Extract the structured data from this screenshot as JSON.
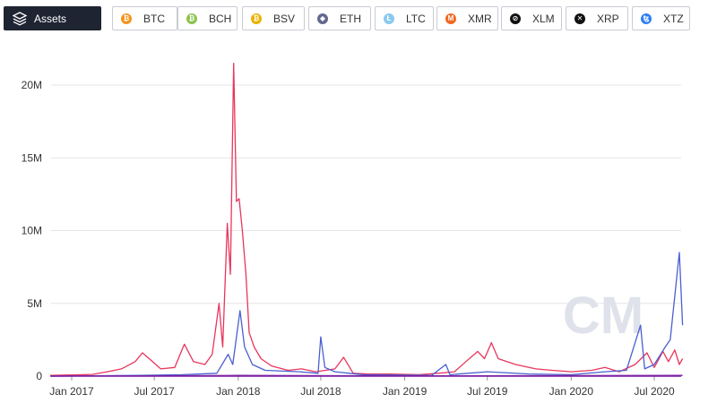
{
  "toolbar": {
    "assets_label": "Assets",
    "assets": [
      {
        "label": "BTC",
        "color": "#f7931a",
        "glyph": "₿",
        "icon": "bitcoin-icon"
      },
      {
        "label": "BCH",
        "color": "#8dc351",
        "glyph": "₿",
        "icon": "bitcoin-cash-icon"
      },
      {
        "label": "BSV",
        "color": "#eab300",
        "glyph": "₿",
        "icon": "bitcoin-sv-icon"
      },
      {
        "label": "ETH",
        "color": "#62688f",
        "glyph": "◆",
        "icon": "ethereum-icon"
      },
      {
        "label": "LTC",
        "color": "#88c9ee",
        "glyph": "Ł",
        "icon": "litecoin-icon"
      },
      {
        "label": "XMR",
        "color": "#f26822",
        "glyph": "M",
        "icon": "monero-icon"
      },
      {
        "label": "XLM",
        "color": "#111111",
        "glyph": "⊘",
        "icon": "stellar-icon"
      },
      {
        "label": "XRP",
        "color": "#111111",
        "glyph": "✕",
        "icon": "ripple-icon"
      },
      {
        "label": "XTZ",
        "color": "#2c7df7",
        "glyph": "ꜩ",
        "icon": "tezos-icon"
      }
    ]
  },
  "watermark": "CM",
  "chart_data": {
    "type": "line",
    "x_ticks": [
      "Jan 2017",
      "Jul 2017",
      "Jan 2018",
      "Jul 2018",
      "Jan 2019",
      "Jul 2019",
      "Jan 2020",
      "Jul 2020"
    ],
    "y_ticks": [
      "0",
      "5M",
      "10M",
      "15M",
      "20M"
    ],
    "ylim": [
      0,
      22000000
    ],
    "grid": true,
    "series": [
      {
        "color": "#e8365d",
        "points": [
          [
            "2016-11-15",
            0.05
          ],
          [
            "2017-01-01",
            0.08
          ],
          [
            "2017-02-15",
            0.12
          ],
          [
            "2017-03-20",
            0.3
          ],
          [
            "2017-04-20",
            0.5
          ],
          [
            "2017-05-20",
            1.0
          ],
          [
            "2017-06-05",
            1.6
          ],
          [
            "2017-06-20",
            1.2
          ],
          [
            "2017-07-15",
            0.5
          ],
          [
            "2017-08-15",
            0.6
          ],
          [
            "2017-09-05",
            2.2
          ],
          [
            "2017-09-25",
            1.0
          ],
          [
            "2017-10-20",
            0.8
          ],
          [
            "2017-11-05",
            1.5
          ],
          [
            "2017-11-20",
            5.0
          ],
          [
            "2017-11-28",
            2.0
          ],
          [
            "2017-12-08",
            10.5
          ],
          [
            "2017-12-15",
            7.0
          ],
          [
            "2017-12-22",
            21.5
          ],
          [
            "2017-12-28",
            12.0
          ],
          [
            "2018-01-03",
            12.2
          ],
          [
            "2018-01-10",
            10.0
          ],
          [
            "2018-01-18",
            7.0
          ],
          [
            "2018-01-25",
            3.0
          ],
          [
            "2018-02-05",
            2.0
          ],
          [
            "2018-02-20",
            1.2
          ],
          [
            "2018-03-15",
            0.7
          ],
          [
            "2018-04-20",
            0.4
          ],
          [
            "2018-05-20",
            0.5
          ],
          [
            "2018-06-20",
            0.3
          ],
          [
            "2018-08-01",
            0.5
          ],
          [
            "2018-08-20",
            1.3
          ],
          [
            "2018-09-10",
            0.2
          ],
          [
            "2018-10-15",
            0.15
          ],
          [
            "2018-12-01",
            0.15
          ],
          [
            "2019-02-01",
            0.1
          ],
          [
            "2019-03-15",
            0.2
          ],
          [
            "2019-04-20",
            0.3
          ],
          [
            "2019-05-15",
            1.0
          ],
          [
            "2019-06-10",
            1.7
          ],
          [
            "2019-06-25",
            1.2
          ],
          [
            "2019-07-10",
            2.3
          ],
          [
            "2019-07-25",
            1.2
          ],
          [
            "2019-09-01",
            0.8
          ],
          [
            "2019-10-15",
            0.5
          ],
          [
            "2019-11-20",
            0.4
          ],
          [
            "2020-01-01",
            0.3
          ],
          [
            "2020-02-15",
            0.4
          ],
          [
            "2020-03-15",
            0.6
          ],
          [
            "2020-04-15",
            0.3
          ],
          [
            "2020-05-20",
            0.8
          ],
          [
            "2020-06-15",
            1.6
          ],
          [
            "2020-07-01",
            0.6
          ],
          [
            "2020-07-20",
            1.7
          ],
          [
            "2020-08-01",
            1.0
          ],
          [
            "2020-08-15",
            1.8
          ],
          [
            "2020-08-25",
            0.8
          ],
          [
            "2020-09-01",
            1.2
          ]
        ]
      },
      {
        "color": "#4a5fd1",
        "points": [
          [
            "2016-11-15",
            0.0
          ],
          [
            "2017-06-01",
            0.05
          ],
          [
            "2017-09-01",
            0.1
          ],
          [
            "2017-11-15",
            0.2
          ],
          [
            "2017-12-10",
            1.5
          ],
          [
            "2017-12-20",
            0.8
          ],
          [
            "2018-01-05",
            4.5
          ],
          [
            "2018-01-15",
            2.0
          ],
          [
            "2018-02-01",
            0.8
          ],
          [
            "2018-03-01",
            0.4
          ],
          [
            "2018-05-15",
            0.3
          ],
          [
            "2018-06-25",
            0.2
          ],
          [
            "2018-07-01",
            2.7
          ],
          [
            "2018-07-10",
            0.6
          ],
          [
            "2018-08-01",
            0.3
          ],
          [
            "2018-09-01",
            0.2
          ],
          [
            "2018-10-01",
            0.1
          ],
          [
            "2019-03-01",
            0.05
          ],
          [
            "2019-04-01",
            0.8
          ],
          [
            "2019-04-10",
            0.1
          ],
          [
            "2019-07-01",
            0.3
          ],
          [
            "2019-10-01",
            0.15
          ],
          [
            "2020-01-01",
            0.1
          ],
          [
            "2020-03-15",
            0.3
          ],
          [
            "2020-05-01",
            0.4
          ],
          [
            "2020-06-01",
            3.5
          ],
          [
            "2020-06-10",
            0.5
          ],
          [
            "2020-07-01",
            0.8
          ],
          [
            "2020-07-25",
            2.0
          ],
          [
            "2020-08-05",
            2.5
          ],
          [
            "2020-08-15",
            5.5
          ],
          [
            "2020-08-25",
            8.5
          ],
          [
            "2020-09-01",
            3.5
          ]
        ]
      },
      {
        "color": "#7a1fa2",
        "points": [
          [
            "2016-11-15",
            0.0
          ],
          [
            "2018-01-01",
            0.05
          ],
          [
            "2019-01-01",
            0.02
          ],
          [
            "2020-09-01",
            0.05
          ]
        ]
      }
    ]
  }
}
